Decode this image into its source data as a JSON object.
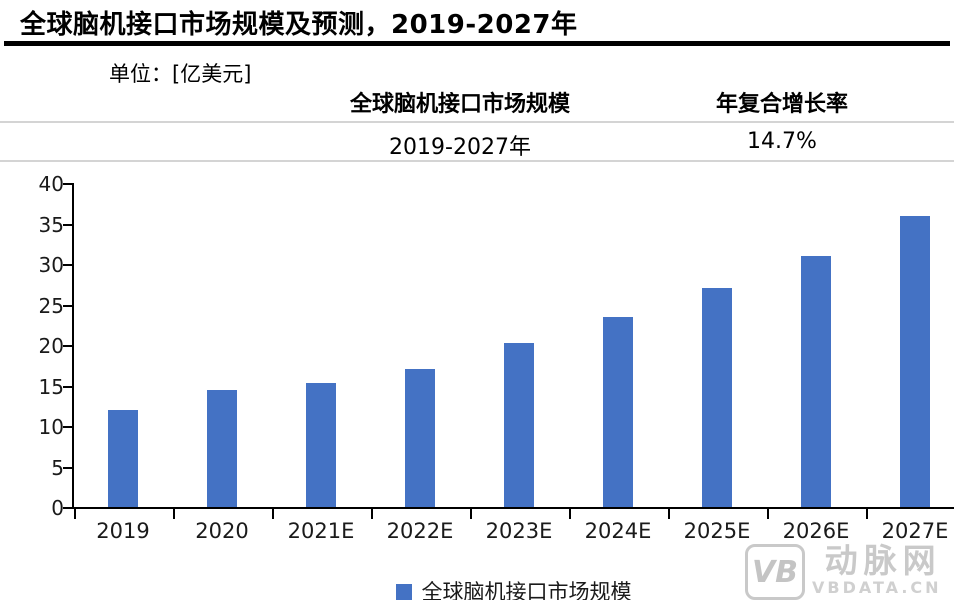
{
  "header": {
    "title": "全球脑机接口市场规模及预测，2019-2027年",
    "unit_label": "单位：[亿美元]",
    "table": {
      "col1_header": "全球脑机接口市场规模",
      "col2_header": "年复合增长率",
      "col1_value": "2019-2027年",
      "col2_value": "14.7%"
    }
  },
  "chart_data": {
    "type": "bar",
    "title": "全球脑机接口市场规模及预测，2019-2027年",
    "unit": "亿美元",
    "categories": [
      "2019",
      "2020",
      "2021E",
      "2022E",
      "2023E",
      "2024E",
      "2025E",
      "2026E",
      "2027E"
    ],
    "series": [
      {
        "name": "全球脑机接口市场规模",
        "values": [
          12,
          14.5,
          15.3,
          17,
          20.3,
          23.5,
          27,
          31,
          35.9
        ]
      }
    ],
    "cagr": "14.7%",
    "ylim": [
      0,
      40
    ],
    "ytick_step": 5,
    "yticks": [
      0,
      5,
      10,
      15,
      20,
      25,
      30,
      35,
      40
    ],
    "xlabel": "",
    "ylabel": "",
    "grid": false,
    "legend_position": "bottom",
    "bar_color": "#4472C4"
  },
  "legend": {
    "label": "全球脑机接口市场规模",
    "swatch_color": "#4472C4"
  },
  "watermark": {
    "logo_text": "VB",
    "name": "动脉网",
    "domain": "VBDATA.CN"
  },
  "colors": {
    "bar": "#4472C4",
    "title_rule": "#000000",
    "table_line": "#d4d4d4",
    "axis": "#000000",
    "watermark": "#c9c9c9"
  }
}
